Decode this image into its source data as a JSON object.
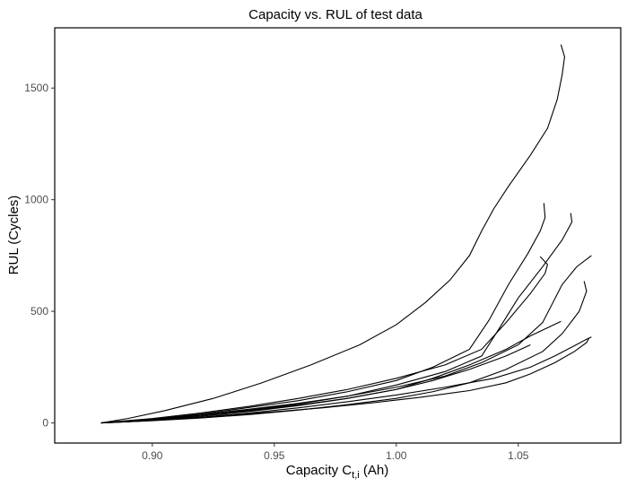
{
  "chart_data": {
    "type": "line",
    "title": "Capacity vs. RUL of test data",
    "xlabel": "Capacity C",
    "xlabel_subscript": "t,i",
    "xlabel_suffix": " (Ah)",
    "ylabel": "RUL (Cycles)",
    "xlim": [
      0.86,
      1.092
    ],
    "ylim": [
      -90,
      1770
    ],
    "x_ticks": [
      0.9,
      0.95,
      1.0,
      1.05
    ],
    "x_tick_labels": [
      "0.90",
      "0.95",
      "1.00",
      "1.05"
    ],
    "y_ticks": [
      0,
      500,
      1000,
      1500
    ],
    "y_tick_labels": [
      "0",
      "500",
      "1000",
      "1500"
    ],
    "grid": false,
    "legend": "none",
    "series": [
      {
        "x": [
          1.0675,
          1.069,
          1.068,
          1.066,
          1.062,
          1.055,
          1.046,
          1.04,
          1.035,
          1.03,
          1.022,
          1.012,
          1.0,
          0.985,
          0.965,
          0.945,
          0.925,
          0.905,
          0.89,
          0.879
        ],
        "y": [
          1695,
          1640,
          1560,
          1450,
          1320,
          1200,
          1060,
          960,
          860,
          750,
          640,
          540,
          440,
          350,
          260,
          180,
          110,
          55,
          20,
          0
        ]
      },
      {
        "x": [
          1.0605,
          1.061,
          1.059,
          1.054,
          1.046,
          1.038,
          1.03,
          1.015,
          1.0,
          0.98,
          0.96,
          0.94,
          0.92,
          0.9,
          0.885,
          0.879
        ],
        "y": [
          985,
          920,
          860,
          760,
          620,
          460,
          330,
          250,
          190,
          140,
          100,
          70,
          40,
          18,
          5,
          0
        ]
      },
      {
        "x": [
          1.0715,
          1.072,
          1.068,
          1.06,
          1.05,
          1.042,
          1.035,
          1.02,
          1.0,
          0.98,
          0.96,
          0.94,
          0.92,
          0.9,
          0.885,
          0.879
        ],
        "y": [
          940,
          900,
          820,
          700,
          560,
          420,
          300,
          230,
          170,
          120,
          85,
          58,
          34,
          15,
          4,
          0
        ]
      },
      {
        "x": [
          1.059,
          1.062,
          1.061,
          1.055,
          1.045,
          1.035,
          1.02,
          1.0,
          0.98,
          0.96,
          0.94,
          0.92,
          0.9,
          0.885,
          0.879
        ],
        "y": [
          745,
          710,
          670,
          580,
          450,
          330,
          260,
          200,
          150,
          110,
          75,
          45,
          20,
          6,
          0
        ]
      },
      {
        "x": [
          1.08,
          1.074,
          1.068,
          1.06,
          1.05,
          1.035,
          1.02,
          1.0,
          0.98,
          0.96,
          0.94,
          0.92,
          0.9,
          0.885,
          0.879
        ],
        "y": [
          750,
          700,
          620,
          450,
          350,
          270,
          210,
          160,
          120,
          88,
          62,
          38,
          17,
          5,
          0
        ]
      },
      {
        "x": [
          1.077,
          1.078,
          1.075,
          1.068,
          1.06,
          1.045,
          1.03,
          1.015,
          1.0,
          0.98,
          0.96,
          0.94,
          0.92,
          0.9,
          0.885,
          0.879
        ],
        "y": [
          635,
          590,
          500,
          400,
          320,
          240,
          180,
          140,
          110,
          82,
          58,
          38,
          22,
          10,
          3,
          0
        ]
      },
      {
        "x": [
          1.0675,
          1.055,
          1.045,
          1.03,
          1.015,
          1.0,
          0.98,
          0.96,
          0.94,
          0.92,
          0.9,
          0.885,
          0.879
        ],
        "y": [
          455,
          390,
          330,
          260,
          200,
          150,
          110,
          78,
          52,
          30,
          13,
          4,
          0
        ]
      },
      {
        "x": [
          1.08,
          1.078,
          1.072,
          1.065,
          1.055,
          1.04,
          1.02,
          1.0,
          0.98,
          0.96,
          0.94,
          0.92,
          0.9,
          0.885,
          0.879
        ],
        "y": [
          385,
          375,
          340,
          300,
          250,
          200,
          160,
          125,
          95,
          68,
          45,
          26,
          11,
          3,
          0
        ]
      },
      {
        "x": [
          1.079,
          1.078,
          1.073,
          1.065,
          1.055,
          1.045,
          1.03,
          1.01,
          0.99,
          0.97,
          0.95,
          0.93,
          0.91,
          0.895,
          0.879
        ],
        "y": [
          380,
          360,
          320,
          270,
          220,
          180,
          145,
          115,
          90,
          68,
          50,
          33,
          18,
          8,
          0
        ]
      },
      {
        "x": [
          1.055,
          1.045,
          1.03,
          1.015,
          1.0,
          0.98,
          0.96,
          0.94,
          0.92,
          0.9,
          0.885,
          0.879
        ],
        "y": [
          350,
          300,
          240,
          190,
          150,
          110,
          80,
          55,
          34,
          16,
          5,
          0
        ]
      }
    ]
  }
}
